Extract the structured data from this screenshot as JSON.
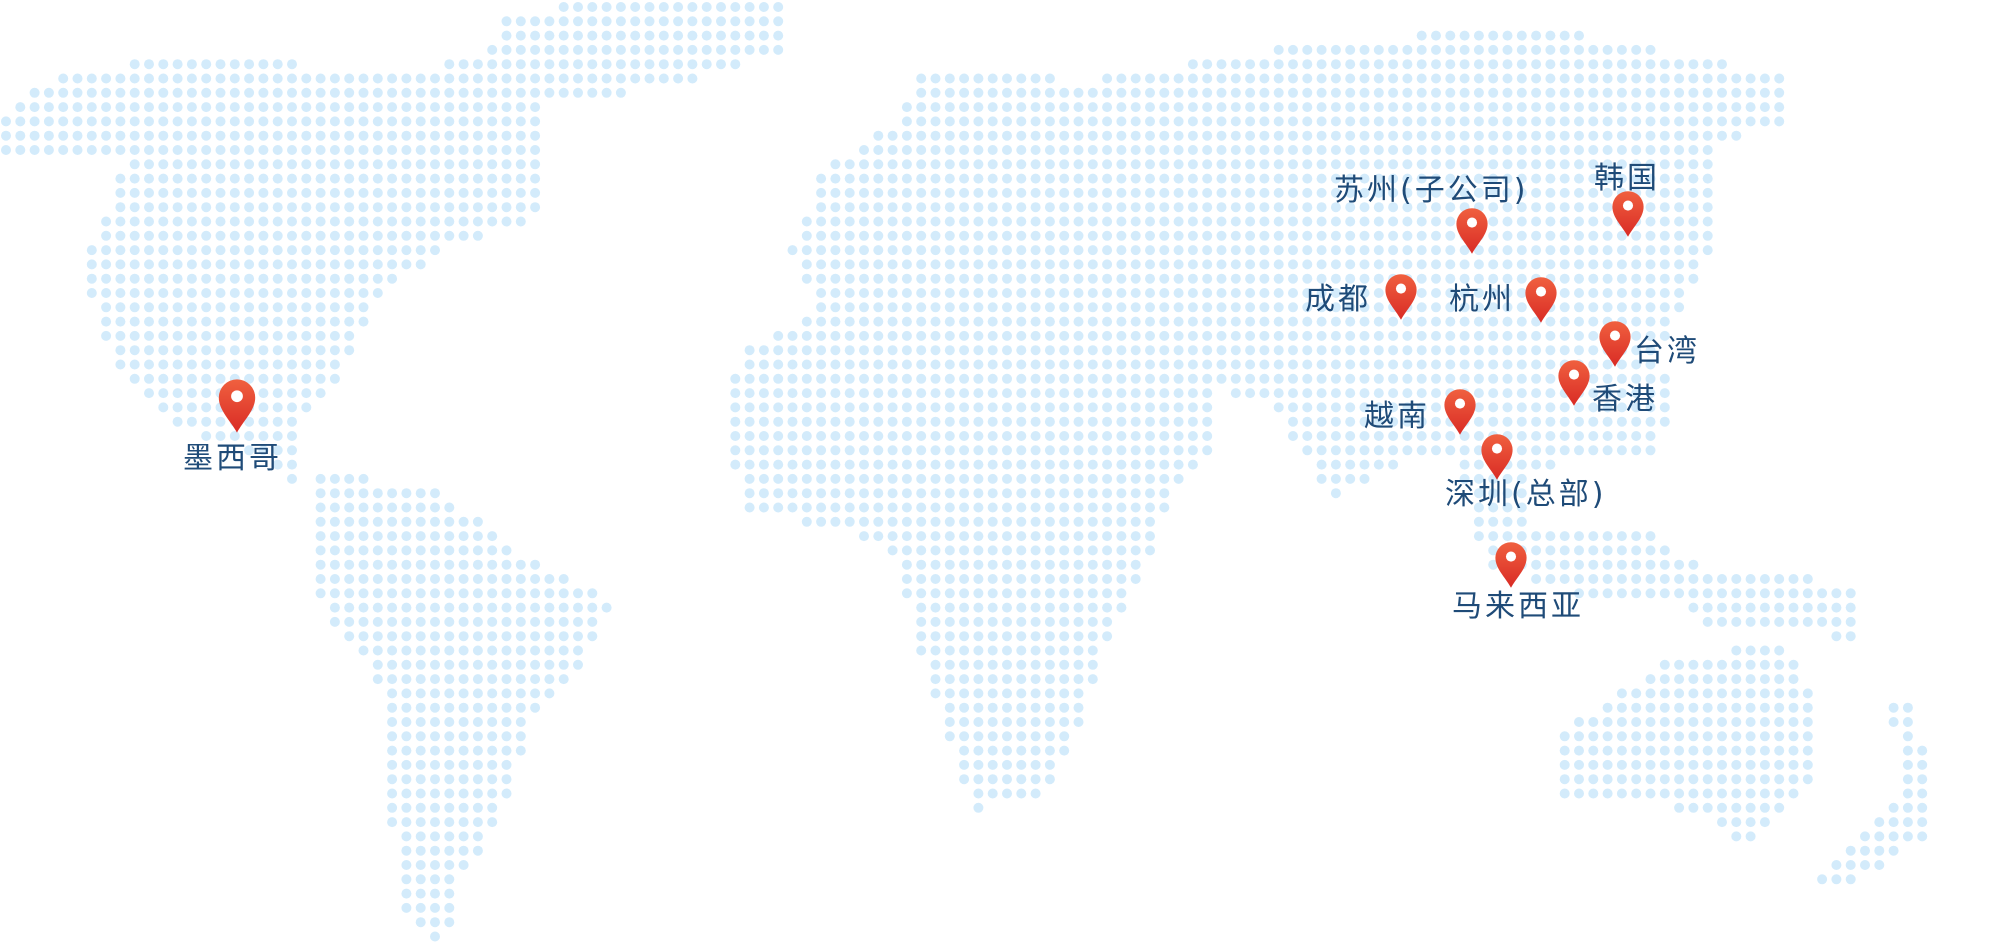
{
  "map": {
    "dot_color": "#d3ebfb",
    "pin_color": "#e5412f",
    "label_color": "#1f4b78",
    "locations": [
      {
        "name": "墨西哥"
      },
      {
        "name": "苏州(子公司)"
      },
      {
        "name": "韩国"
      },
      {
        "name": "成都"
      },
      {
        "name": "杭州"
      },
      {
        "name": "台湾"
      },
      {
        "name": "香港"
      },
      {
        "name": "越南"
      },
      {
        "name": "深圳(总部)"
      },
      {
        "name": "马来西亚"
      }
    ]
  }
}
